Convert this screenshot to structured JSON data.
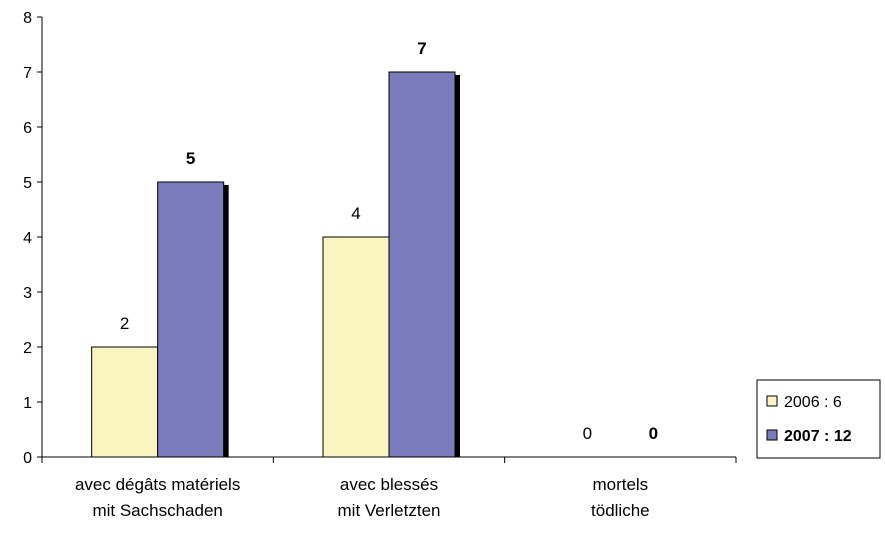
{
  "chart_data": {
    "type": "bar",
    "categories": [
      [
        "avec dégâts matériels",
        "mit Sachschaden"
      ],
      [
        "avec blessés",
        "mit Verletzten"
      ],
      [
        "mortels",
        "tödliche"
      ]
    ],
    "series": [
      {
        "name": "2006 : 6",
        "values": [
          2,
          4,
          0
        ],
        "color": "#f8f5c0",
        "bold": false
      },
      {
        "name": "2007 : 12",
        "values": [
          5,
          7,
          0
        ],
        "color": "#7a7cbb",
        "bold": true
      }
    ],
    "data_labels": [
      [
        "2",
        "4",
        "0"
      ],
      [
        "5",
        "7",
        "0"
      ]
    ],
    "ylim": [
      0,
      8
    ],
    "yticks": [
      "0",
      "1",
      "2",
      "3",
      "4",
      "5",
      "6",
      "7",
      "8"
    ],
    "grid": false,
    "legend_position": "right"
  }
}
